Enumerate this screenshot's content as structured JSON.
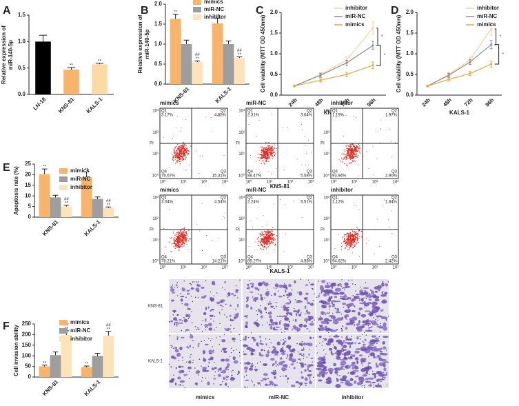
{
  "chart_data": [
    {
      "label": "A",
      "type": "bar",
      "y_label": [
        "Relative expression of",
        "miR-140-5p"
      ],
      "categories": [
        "LN-18",
        "KNS-81",
        "KALS-1"
      ],
      "values": [
        1.0,
        0.47,
        0.57
      ],
      "errors": [
        0.12,
        0.04,
        0.02
      ],
      "colors": [
        "#000000",
        "#f7b46a",
        "#fdd9a6"
      ],
      "annotations": [
        null,
        "**",
        "**"
      ],
      "ylim": [
        0,
        1.5
      ],
      "yticks": [
        {
          "value": 0,
          "label": "0.0"
        },
        0.5,
        {
          "value": 1,
          "label": "1.0"
        },
        1.5
      ]
    },
    {
      "label": "B",
      "type": "bar",
      "y_label": [
        "Relative expression of",
        "miR-140-5p"
      ],
      "categories": [
        "KNS-81",
        "KALS-1"
      ],
      "series": [
        {
          "name": "mimics",
          "color": "#f7b46a",
          "values": [
            1.63,
            1.52
          ],
          "errors": [
            0.12,
            0.13
          ],
          "annotations": [
            "**",
            "**"
          ]
        },
        {
          "name": "miR-NC",
          "color": "#9e9e9e",
          "values": [
            1.0,
            1.0
          ],
          "errors": [
            0.1,
            0.08
          ],
          "annotations": [
            null,
            null
          ]
        },
        {
          "name": "inhibitor",
          "color": "#fde3ba",
          "values": [
            0.55,
            0.65
          ],
          "errors": [
            0.03,
            0.03
          ],
          "annotations": [
            [
              "##",
              "**"
            ],
            [
              "##",
              "**"
            ]
          ]
        }
      ],
      "ylim": [
        0,
        2
      ],
      "yticks": [
        {
          "value": 0,
          "label": "0.0"
        },
        0.5,
        {
          "value": 1,
          "label": "1.0"
        },
        1.5,
        {
          "value": 2,
          "label": "2.0"
        }
      ]
    },
    {
      "label": "C",
      "type": "line",
      "y_label": [
        "Cell viability (MTT OD 450nm)"
      ],
      "x_label": "KNS-81",
      "categories": [
        "24h",
        "48h",
        "72h",
        "96h"
      ],
      "series": [
        {
          "name": "inhibitor",
          "color": "#fbcf9c",
          "values": [
            0.22,
            0.5,
            0.85,
            1.62
          ],
          "errors": [
            0.02,
            0.05,
            0.07,
            0.15
          ]
        },
        {
          "name": "miR-NC",
          "color": "#8c8c8c",
          "values": [
            0.22,
            0.48,
            0.78,
            1.2
          ],
          "errors": [
            0.02,
            0.05,
            0.06,
            0.1
          ]
        },
        {
          "name": "mimics",
          "color": "#f3a23c",
          "values": [
            0.22,
            0.36,
            0.5,
            0.72
          ],
          "errors": [
            0.02,
            0.04,
            0.05,
            0.08
          ]
        }
      ],
      "brackets": [
        "*",
        "*"
      ],
      "ylim": [
        0,
        2
      ],
      "yticks": [
        {
          "value": 0,
          "label": "0.0"
        },
        0.5,
        {
          "value": 1,
          "label": "1.0"
        },
        1.5,
        {
          "value": 2,
          "label": "2.0"
        }
      ]
    },
    {
      "label": "D",
      "type": "line",
      "y_label": [
        "Cell viability (MTT OD 450nm)"
      ],
      "x_label": "KALS-1",
      "categories": [
        "24h",
        "48h",
        "72h",
        "96h"
      ],
      "series": [
        {
          "name": "inhibitor",
          "color": "#fbcf9c",
          "values": [
            0.22,
            0.5,
            0.85,
            1.6
          ],
          "errors": [
            0.02,
            0.05,
            0.07,
            0.15
          ]
        },
        {
          "name": "miR-NC",
          "color": "#8c8c8c",
          "values": [
            0.22,
            0.48,
            0.8,
            1.22
          ],
          "errors": [
            0.02,
            0.05,
            0.06,
            0.1
          ]
        },
        {
          "name": "mimics",
          "color": "#f3a23c",
          "values": [
            0.22,
            0.38,
            0.52,
            0.75
          ],
          "errors": [
            0.02,
            0.04,
            0.05,
            0.08
          ]
        }
      ],
      "brackets": [
        "*",
        "*"
      ],
      "ylim": [
        0,
        2
      ],
      "yticks": [
        {
          "value": 0,
          "label": "0.0"
        },
        0.5,
        {
          "value": 1,
          "label": "1.0"
        },
        1.5,
        {
          "value": 2,
          "label": "2.0"
        }
      ]
    },
    {
      "label": "E",
      "type": "bar",
      "y_label": [
        "Apoptosis rate (%)"
      ],
      "categories": [
        "KNS-81",
        "KALS-1"
      ],
      "series": [
        {
          "name": "mimics",
          "color": "#f7b46a",
          "values": [
            20.2,
            18.8
          ],
          "errors": [
            2.5,
            2.5
          ],
          "annotations": [
            "**",
            "**"
          ]
        },
        {
          "name": "miR-NC",
          "color": "#9e9e9e",
          "values": [
            9.3,
            8.6
          ],
          "errors": [
            1.0,
            0.9
          ],
          "annotations": [
            null,
            null
          ]
        },
        {
          "name": "inhibitor",
          "color": "#fde3ba",
          "values": [
            5.0,
            4.3
          ],
          "errors": [
            0.6,
            0.5
          ],
          "annotations": [
            [
              "##",
              "**"
            ],
            [
              "##",
              "**"
            ]
          ]
        }
      ],
      "ylim": [
        0,
        25
      ],
      "yticks": [
        0,
        5,
        10,
        15,
        20,
        25
      ]
    },
    {
      "label": "F",
      "type": "bar",
      "y_label": [
        "Cell invasion ability"
      ],
      "categories": [
        "KNS-81",
        "KALS-1"
      ],
      "series": [
        {
          "name": "mimics",
          "color": "#f7b46a",
          "values": [
            50,
            47
          ],
          "errors": [
            6,
            5
          ],
          "annotations": [
            "**",
            "**"
          ]
        },
        {
          "name": "miR-NC",
          "color": "#9e9e9e",
          "values": [
            103,
            100
          ],
          "errors": [
            15,
            12
          ],
          "annotations": [
            null,
            null
          ]
        },
        {
          "name": "inhibitor",
          "color": "#fde3ba",
          "values": [
            198,
            195
          ],
          "errors": [
            20,
            20
          ],
          "annotations": [
            [
              "##",
              "**"
            ],
            [
              "##",
              "**"
            ]
          ]
        }
      ],
      "ylim": [
        0,
        250
      ],
      "yticks": [
        0,
        50,
        100,
        150,
        200,
        250
      ]
    }
  ],
  "flow_cytometry": {
    "y_label": "PI",
    "ticks": [
      "10⁰",
      "10¹",
      "10²",
      "10³"
    ],
    "quadrants": [
      "Q1",
      "Q2",
      "Q3",
      "Q4"
    ],
    "rows": [
      {
        "x_label": "KNS-81",
        "plots": [
          {
            "title": "mimics",
            "values": [
              "3.17%",
              "4.85%",
              "15.31%",
              "76.67%"
            ]
          },
          {
            "title": "miR-NC",
            "values": [
              "2.31%",
              "3.64%",
              "5.58%",
              "88.47%"
            ]
          },
          {
            "title": "inhibitor",
            "values": [
              "1.19%",
              "1.97%",
              "2.90%",
              "93.94%"
            ]
          }
        ]
      },
      {
        "x_label": "KALS-1",
        "plots": [
          {
            "title": "mimics",
            "values": [
              "3.04%",
              "4.54%",
              "14.21%",
              "78.21%"
            ]
          },
          {
            "title": "miR-NC",
            "values": [
              "2.24%",
              "3.51%",
              "4.98%",
              "89.27%"
            ]
          },
          {
            "title": "inhibitor",
            "values": [
              "1.12%",
              "1.84%",
              "2.42%",
              "94.62%"
            ]
          }
        ]
      }
    ]
  },
  "invasion_images": {
    "row_labels": [
      "KNS-81",
      "KALS-1"
    ],
    "column_labels": [
      "mimics",
      "miR-NC",
      "inhibitor"
    ]
  }
}
